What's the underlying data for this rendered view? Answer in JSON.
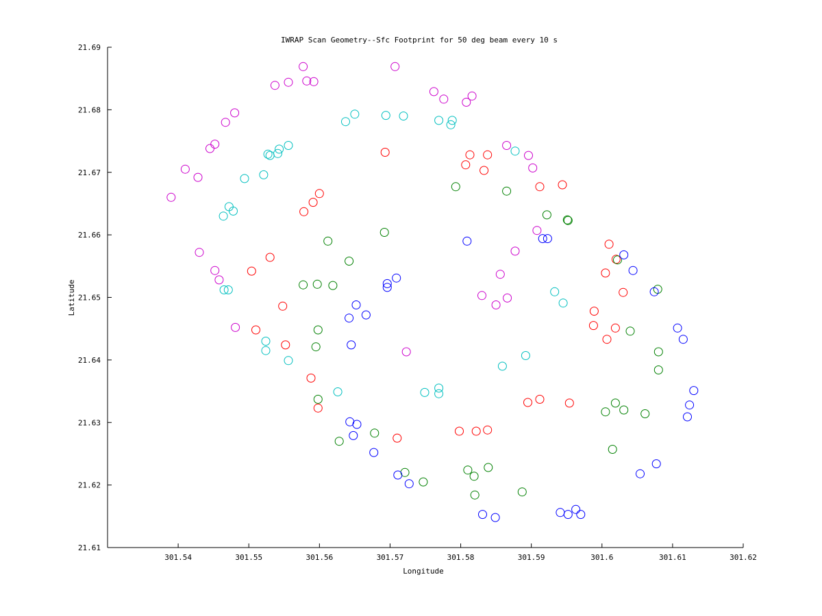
{
  "chart_data": {
    "type": "scatter",
    "title": "IWRAP Scan Geometry--Sfc Footprint for 50 deg beam every 10 s",
    "xlabel": "Longitude",
    "ylabel": "Latitude",
    "xlim": [
      301.53,
      301.62
    ],
    "ylim": [
      21.61,
      21.69
    ],
    "xticks": [
      "301.54",
      "301.55",
      "301.56",
      "301.57",
      "301.58",
      "301.59",
      "301.6",
      "301.61",
      "301.62"
    ],
    "yticks": [
      "21.61",
      "21.62",
      "21.63",
      "21.64",
      "21.65",
      "21.66",
      "21.67",
      "21.68",
      "21.69"
    ],
    "grid": false,
    "legend": "none",
    "marker": "open-circle",
    "series": [
      {
        "color": "#cc00cc",
        "points": [
          [
            301.539,
            21.666
          ],
          [
            301.541,
            21.6705
          ],
          [
            301.5428,
            21.6692
          ],
          [
            301.5445,
            21.6738
          ],
          [
            301.5452,
            21.6745
          ],
          [
            301.5467,
            21.678
          ],
          [
            301.548,
            21.6795
          ],
          [
            301.5537,
            21.6839
          ],
          [
            301.5556,
            21.6844
          ],
          [
            301.5577,
            21.6869
          ],
          [
            301.5582,
            21.6846
          ],
          [
            301.5592,
            21.6845
          ],
          [
            301.5707,
            21.6869
          ],
          [
            301.5762,
            21.6829
          ],
          [
            301.5776,
            21.6817
          ],
          [
            301.5808,
            21.6812
          ],
          [
            301.5816,
            21.6822
          ],
          [
            301.5865,
            21.6743
          ],
          [
            301.5896,
            21.6727
          ],
          [
            301.5902,
            21.6707
          ],
          [
            301.543,
            21.6572
          ],
          [
            301.5452,
            21.6543
          ],
          [
            301.5458,
            21.6528
          ],
          [
            301.5481,
            21.6452
          ],
          [
            301.5723,
            21.6413
          ],
          [
            301.583,
            21.6503
          ],
          [
            301.5856,
            21.6537
          ],
          [
            301.585,
            21.6488
          ],
          [
            301.5866,
            21.6499
          ],
          [
            301.5877,
            21.6574
          ],
          [
            301.5908,
            21.6607
          ]
        ]
      },
      {
        "color": "#00bfbf",
        "points": [
          [
            301.5464,
            21.663
          ],
          [
            301.5472,
            21.6645
          ],
          [
            301.5478,
            21.6638
          ],
          [
            301.5494,
            21.669
          ],
          [
            301.5521,
            21.6696
          ],
          [
            301.5527,
            21.6729
          ],
          [
            301.553,
            21.6727
          ],
          [
            301.5541,
            21.673
          ],
          [
            301.5543,
            21.6737
          ],
          [
            301.5556,
            21.6743
          ],
          [
            301.5637,
            21.6781
          ],
          [
            301.565,
            21.6793
          ],
          [
            301.5694,
            21.6791
          ],
          [
            301.5719,
            21.679
          ],
          [
            301.5769,
            21.6783
          ],
          [
            301.5786,
            21.6776
          ],
          [
            301.5788,
            21.6783
          ],
          [
            301.5877,
            21.6734
          ],
          [
            301.5465,
            21.6512
          ],
          [
            301.5471,
            21.6512
          ],
          [
            301.5524,
            21.643
          ],
          [
            301.5524,
            21.6415
          ],
          [
            301.5556,
            21.6399
          ],
          [
            301.5626,
            21.6349
          ],
          [
            301.5749,
            21.6348
          ],
          [
            301.5769,
            21.6355
          ],
          [
            301.5769,
            21.6346
          ],
          [
            301.5859,
            21.639
          ],
          [
            301.5892,
            21.6407
          ],
          [
            301.5933,
            21.6509
          ],
          [
            301.5945,
            21.6491
          ]
        ]
      },
      {
        "color": "#ff0000",
        "points": [
          [
            301.5693,
            21.6732
          ],
          [
            301.5807,
            21.6712
          ],
          [
            301.5813,
            21.6728
          ],
          [
            301.5833,
            21.6703
          ],
          [
            301.5838,
            21.6728
          ],
          [
            301.5912,
            21.6677
          ],
          [
            301.5944,
            21.668
          ],
          [
            301.5578,
            21.6637
          ],
          [
            301.5591,
            21.6652
          ],
          [
            301.56,
            21.6666
          ],
          [
            301.553,
            21.6564
          ],
          [
            301.5504,
            21.6542
          ],
          [
            301.5548,
            21.6486
          ],
          [
            301.551,
            21.6448
          ],
          [
            301.5552,
            21.6424
          ],
          [
            301.5588,
            21.6371
          ],
          [
            301.5598,
            21.6323
          ],
          [
            301.571,
            21.6275
          ],
          [
            301.5798,
            21.6286
          ],
          [
            301.5822,
            21.6286
          ],
          [
            301.5838,
            21.6288
          ],
          [
            301.5895,
            21.6332
          ],
          [
            301.5912,
            21.6337
          ],
          [
            301.5954,
            21.6331
          ],
          [
            301.5989,
            21.6478
          ],
          [
            301.5988,
            21.6455
          ],
          [
            301.6005,
            21.6539
          ],
          [
            301.601,
            21.6585
          ],
          [
            301.602,
            21.6561
          ],
          [
            301.603,
            21.6508
          ],
          [
            301.6007,
            21.6433
          ],
          [
            301.6019,
            21.6451
          ]
        ]
      },
      {
        "color": "#008000",
        "points": [
          [
            301.5793,
            21.6677
          ],
          [
            301.5865,
            21.667
          ],
          [
            301.5922,
            21.6632
          ],
          [
            301.5951,
            21.6624
          ],
          [
            301.5952,
            21.6623
          ],
          [
            301.5692,
            21.6604
          ],
          [
            301.5612,
            21.659
          ],
          [
            301.5642,
            21.6558
          ],
          [
            301.5577,
            21.652
          ],
          [
            301.5597,
            21.6521
          ],
          [
            301.5619,
            21.6519
          ],
          [
            301.5598,
            21.6448
          ],
          [
            301.5595,
            21.6421
          ],
          [
            301.5598,
            21.6337
          ],
          [
            301.5628,
            21.627
          ],
          [
            301.5678,
            21.6283
          ],
          [
            301.5721,
            21.622
          ],
          [
            301.5747,
            21.6205
          ],
          [
            301.581,
            21.6224
          ],
          [
            301.5819,
            21.6214
          ],
          [
            301.582,
            21.6184
          ],
          [
            301.5839,
            21.6228
          ],
          [
            301.5887,
            21.6189
          ],
          [
            301.6022,
            21.656
          ],
          [
            301.6079,
            21.6513
          ],
          [
            301.604,
            21.6446
          ],
          [
            301.608,
            21.6413
          ],
          [
            301.608,
            21.6384
          ],
          [
            301.6019,
            21.6331
          ],
          [
            301.6005,
            21.6317
          ],
          [
            301.6031,
            21.632
          ],
          [
            301.6061,
            21.6314
          ],
          [
            301.6015,
            21.6257
          ]
        ]
      },
      {
        "color": "#0000ff",
        "points": [
          [
            301.5809,
            21.659
          ],
          [
            301.5916,
            21.6594
          ],
          [
            301.5923,
            21.6594
          ],
          [
            301.6031,
            21.6568
          ],
          [
            301.6044,
            21.6543
          ],
          [
            301.6074,
            21.6509
          ],
          [
            301.5709,
            21.6531
          ],
          [
            301.5696,
            21.6522
          ],
          [
            301.5696,
            21.6516
          ],
          [
            301.5652,
            21.6488
          ],
          [
            301.5666,
            21.6472
          ],
          [
            301.5642,
            21.6467
          ],
          [
            301.5645,
            21.6424
          ],
          [
            301.5643,
            21.6301
          ],
          [
            301.5653,
            21.6297
          ],
          [
            301.5648,
            21.6279
          ],
          [
            301.5677,
            21.6252
          ],
          [
            301.5711,
            21.6216
          ],
          [
            301.5727,
            21.6202
          ],
          [
            301.5831,
            21.6153
          ],
          [
            301.5849,
            21.6148
          ],
          [
            301.5941,
            21.6156
          ],
          [
            301.5952,
            21.6153
          ],
          [
            301.5963,
            21.6161
          ],
          [
            301.597,
            21.6153
          ],
          [
            301.6054,
            21.6218
          ],
          [
            301.6077,
            21.6234
          ],
          [
            301.6107,
            21.6451
          ],
          [
            301.6115,
            21.6433
          ],
          [
            301.613,
            21.6351
          ],
          [
            301.6124,
            21.6328
          ],
          [
            301.6121,
            21.6309
          ]
        ]
      }
    ]
  }
}
